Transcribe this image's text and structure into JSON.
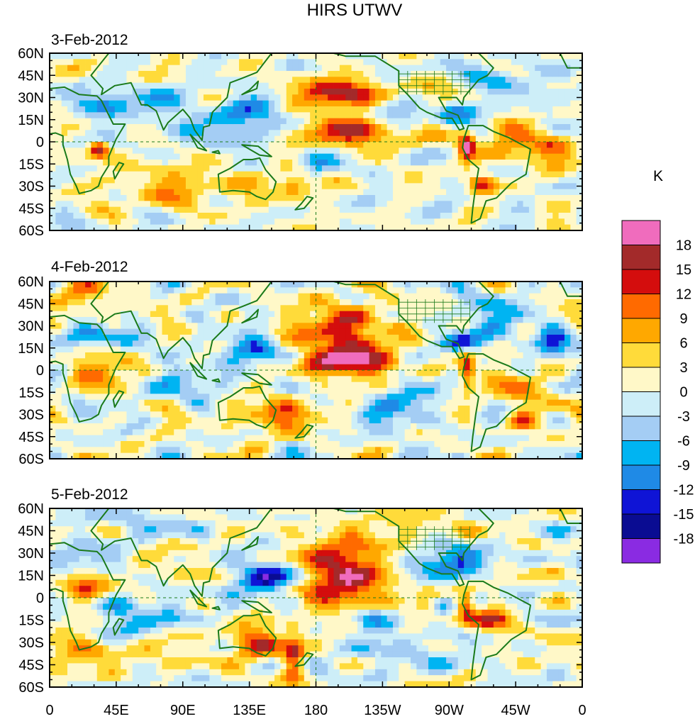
{
  "chart_data": {
    "type": "heatmap",
    "title": "HIRS UTWV",
    "units": "K",
    "panels": [
      {
        "date": "3-Feb-2012"
      },
      {
        "date": "4-Feb-2012"
      },
      {
        "date": "5-Feb-2012"
      }
    ],
    "y_ticks": [
      "60N",
      "45N",
      "30N",
      "15N",
      "0",
      "15S",
      "30S",
      "45S",
      "60S"
    ],
    "y_values": [
      60,
      45,
      30,
      15,
      0,
      -15,
      -30,
      -45,
      -60
    ],
    "x_ticks": [
      "0",
      "45E",
      "90E",
      "135E",
      "180",
      "135W",
      "90W",
      "45W",
      "0"
    ],
    "x_values": [
      0,
      45,
      90,
      135,
      180,
      225,
      270,
      315,
      360
    ],
    "xlim": [
      0,
      360
    ],
    "ylim": [
      -60,
      60
    ],
    "colorbar": {
      "labels": [
        "18",
        "15",
        "12",
        "9",
        "6",
        "3",
        "0",
        "-3",
        "-6",
        "-9",
        "-12",
        "-15",
        "-18"
      ],
      "colors": [
        "#f06cbd",
        "#a32a2a",
        "#d40d0d",
        "#ff6a00",
        "#ffa800",
        "#ffdb3a",
        "#fff8c8",
        "#cdeef8",
        "#a4cdf4",
        "#00b4f2",
        "#1f8ae6",
        "#0f14d6",
        "#0a0c92",
        "#8a2be2"
      ]
    },
    "anomalies": [
      [
        {
          "lon": 195,
          "lat": 32,
          "v": 17,
          "rx": 20,
          "ry": 8
        },
        {
          "lon": 205,
          "lat": 8,
          "v": 14,
          "rx": 25,
          "ry": 8
        },
        {
          "lon": 260,
          "lat": 28,
          "v": 9,
          "rx": 20,
          "ry": 10
        },
        {
          "lon": 282,
          "lat": -3,
          "v": 17,
          "rx": 4,
          "ry": 7
        },
        {
          "lon": 292,
          "lat": -30,
          "v": 14,
          "rx": 6,
          "ry": 4
        },
        {
          "lon": 340,
          "lat": -5,
          "v": 11,
          "rx": 10,
          "ry": 7
        },
        {
          "lon": 33,
          "lat": -5,
          "v": 15,
          "rx": 4,
          "ry": 4
        },
        {
          "lon": 310,
          "lat": 0,
          "v": 8,
          "rx": 15,
          "ry": 10
        },
        {
          "lon": 90,
          "lat": -30,
          "v": 7,
          "rx": 35,
          "ry": 9
        },
        {
          "lon": 165,
          "lat": -30,
          "v": 11,
          "rx": 8,
          "ry": 6
        },
        {
          "lon": 50,
          "lat": 25,
          "v": -9,
          "rx": 25,
          "ry": 7
        },
        {
          "lon": 275,
          "lat": 20,
          "v": -15,
          "rx": 10,
          "ry": 6
        },
        {
          "lon": 235,
          "lat": 22,
          "v": -11,
          "rx": 20,
          "ry": 8
        },
        {
          "lon": 120,
          "lat": 10,
          "v": -8,
          "rx": 20,
          "ry": 10
        },
        {
          "lon": 150,
          "lat": 22,
          "v": -6,
          "rx": 20,
          "ry": 7
        },
        {
          "lon": 300,
          "lat": 40,
          "v": -6,
          "rx": 25,
          "ry": 10
        },
        {
          "lon": 180,
          "lat": -15,
          "v": -9,
          "rx": 8,
          "ry": 6
        }
      ],
      [
        {
          "lon": 200,
          "lat": 25,
          "v": 14,
          "rx": 22,
          "ry": 14
        },
        {
          "lon": 200,
          "lat": 5,
          "v": 15,
          "rx": 22,
          "ry": 6
        },
        {
          "lon": 282,
          "lat": 0,
          "v": 16,
          "rx": 4,
          "ry": 8
        },
        {
          "lon": 148,
          "lat": -30,
          "v": 10,
          "rx": 20,
          "ry": 8
        },
        {
          "lon": 320,
          "lat": -35,
          "v": 10,
          "rx": 8,
          "ry": 5
        },
        {
          "lon": 35,
          "lat": 0,
          "v": 10,
          "rx": 12,
          "ry": 8
        },
        {
          "lon": 320,
          "lat": -15,
          "v": 8,
          "rx": 15,
          "ry": 8
        },
        {
          "lon": 20,
          "lat": 50,
          "v": 6,
          "rx": 20,
          "ry": 8
        },
        {
          "lon": 137,
          "lat": 12,
          "v": -15,
          "rx": 12,
          "ry": 6
        },
        {
          "lon": 280,
          "lat": 20,
          "v": -14,
          "rx": 10,
          "ry": 5
        },
        {
          "lon": 340,
          "lat": 20,
          "v": -14,
          "rx": 8,
          "ry": 6
        },
        {
          "lon": 30,
          "lat": 22,
          "v": -8,
          "rx": 25,
          "ry": 5
        },
        {
          "lon": 240,
          "lat": -25,
          "v": -9,
          "rx": 15,
          "ry": 10
        },
        {
          "lon": 100,
          "lat": -10,
          "v": -6,
          "rx": 20,
          "ry": 8
        },
        {
          "lon": 300,
          "lat": 40,
          "v": -6,
          "rx": 20,
          "ry": 10
        }
      ],
      [
        {
          "lon": 200,
          "lat": 25,
          "v": 16,
          "rx": 22,
          "ry": 10
        },
        {
          "lon": 200,
          "lat": 5,
          "v": 15,
          "rx": 20,
          "ry": 8
        },
        {
          "lon": 140,
          "lat": -30,
          "v": 15,
          "rx": 12,
          "ry": 8
        },
        {
          "lon": 165,
          "lat": -40,
          "v": 15,
          "rx": 5,
          "ry": 10
        },
        {
          "lon": 282,
          "lat": -5,
          "v": 14,
          "rx": 4,
          "ry": 6
        },
        {
          "lon": 300,
          "lat": -15,
          "v": 12,
          "rx": 10,
          "ry": 5
        },
        {
          "lon": 340,
          "lat": 20,
          "v": 10,
          "rx": 8,
          "ry": 6
        },
        {
          "lon": 20,
          "lat": -30,
          "v": 8,
          "rx": 15,
          "ry": 8
        },
        {
          "lon": 25,
          "lat": 5,
          "v": 10,
          "rx": 10,
          "ry": 7
        },
        {
          "lon": 145,
          "lat": 12,
          "v": -16,
          "rx": 14,
          "ry": 8
        },
        {
          "lon": 265,
          "lat": -5,
          "v": -14,
          "rx": 5,
          "ry": 5
        },
        {
          "lon": 220,
          "lat": -15,
          "v": -12,
          "rx": 10,
          "ry": 8
        },
        {
          "lon": 275,
          "lat": 25,
          "v": -12,
          "rx": 15,
          "ry": 6
        },
        {
          "lon": 340,
          "lat": 25,
          "v": -10,
          "rx": 8,
          "ry": 5
        },
        {
          "lon": 30,
          "lat": 25,
          "v": -7,
          "rx": 25,
          "ry": 6
        },
        {
          "lon": 50,
          "lat": -20,
          "v": -6,
          "rx": 15,
          "ry": 10
        }
      ]
    ]
  }
}
